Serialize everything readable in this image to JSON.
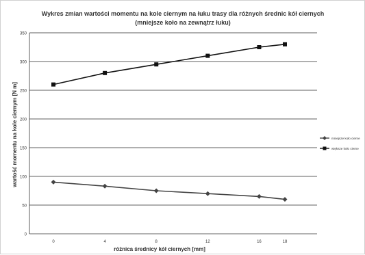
{
  "chart_data": {
    "type": "line",
    "title_line1": "Wykres zmian wartości momentu na kole ciernym na łuku trasy dla różnych średnic kół ciernych",
    "title_line2": "(mniejsze koło na zewnątrz łuku)",
    "xlabel": "różnica średnicy kół ciernych [mm]",
    "ylabel": "wartość momentu na kole ciernym [N m]",
    "categories": [
      "0",
      "4",
      "8",
      "12",
      "16",
      "18"
    ],
    "ylim": [
      0,
      350
    ],
    "yticks": [
      0,
      50,
      100,
      150,
      200,
      250,
      300,
      350
    ],
    "grid": "horizontal",
    "legend_position": "right",
    "series": [
      {
        "name": "mniejsze koło cierne",
        "marker": "diamond",
        "color": "#444444",
        "values": [
          90,
          83,
          75,
          70,
          65,
          60
        ]
      },
      {
        "name": "większe koło cierne",
        "marker": "square",
        "color": "#111111",
        "values": [
          260,
          280,
          295,
          310,
          325,
          330
        ]
      }
    ]
  }
}
